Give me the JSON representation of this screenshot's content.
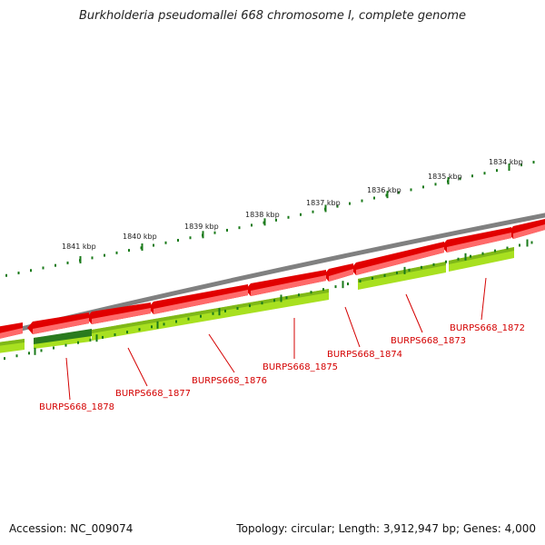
{
  "title": "Burkholderia pseudomallei 668 chromosome I, complete genome",
  "footer": {
    "accession": "Accession: NC_009074",
    "topology": "Topology: circular; Length: 3,912,947 bp; Genes: 4,000"
  },
  "ruler_labels": [
    "1834 kbp",
    "1835 kbp",
    "1836 kbp",
    "1837 kbp",
    "1838 kbp",
    "1839 kbp",
    "1840 kbp",
    "1841 kbp"
  ],
  "gene_labels": [
    "BURPS668_1872",
    "BURPS668_1873",
    "BURPS668_1874",
    "BURPS668_1875",
    "BURPS668_1876",
    "BURPS668_1877",
    "BURPS668_1878"
  ],
  "colors": {
    "cds_arrow": "#e10000",
    "cds_band": "#a8e020",
    "cds_band_highlight": "#2a7a1e",
    "backbone": "#808080",
    "ticks": "#1a7a1a",
    "label": "#d40000"
  }
}
